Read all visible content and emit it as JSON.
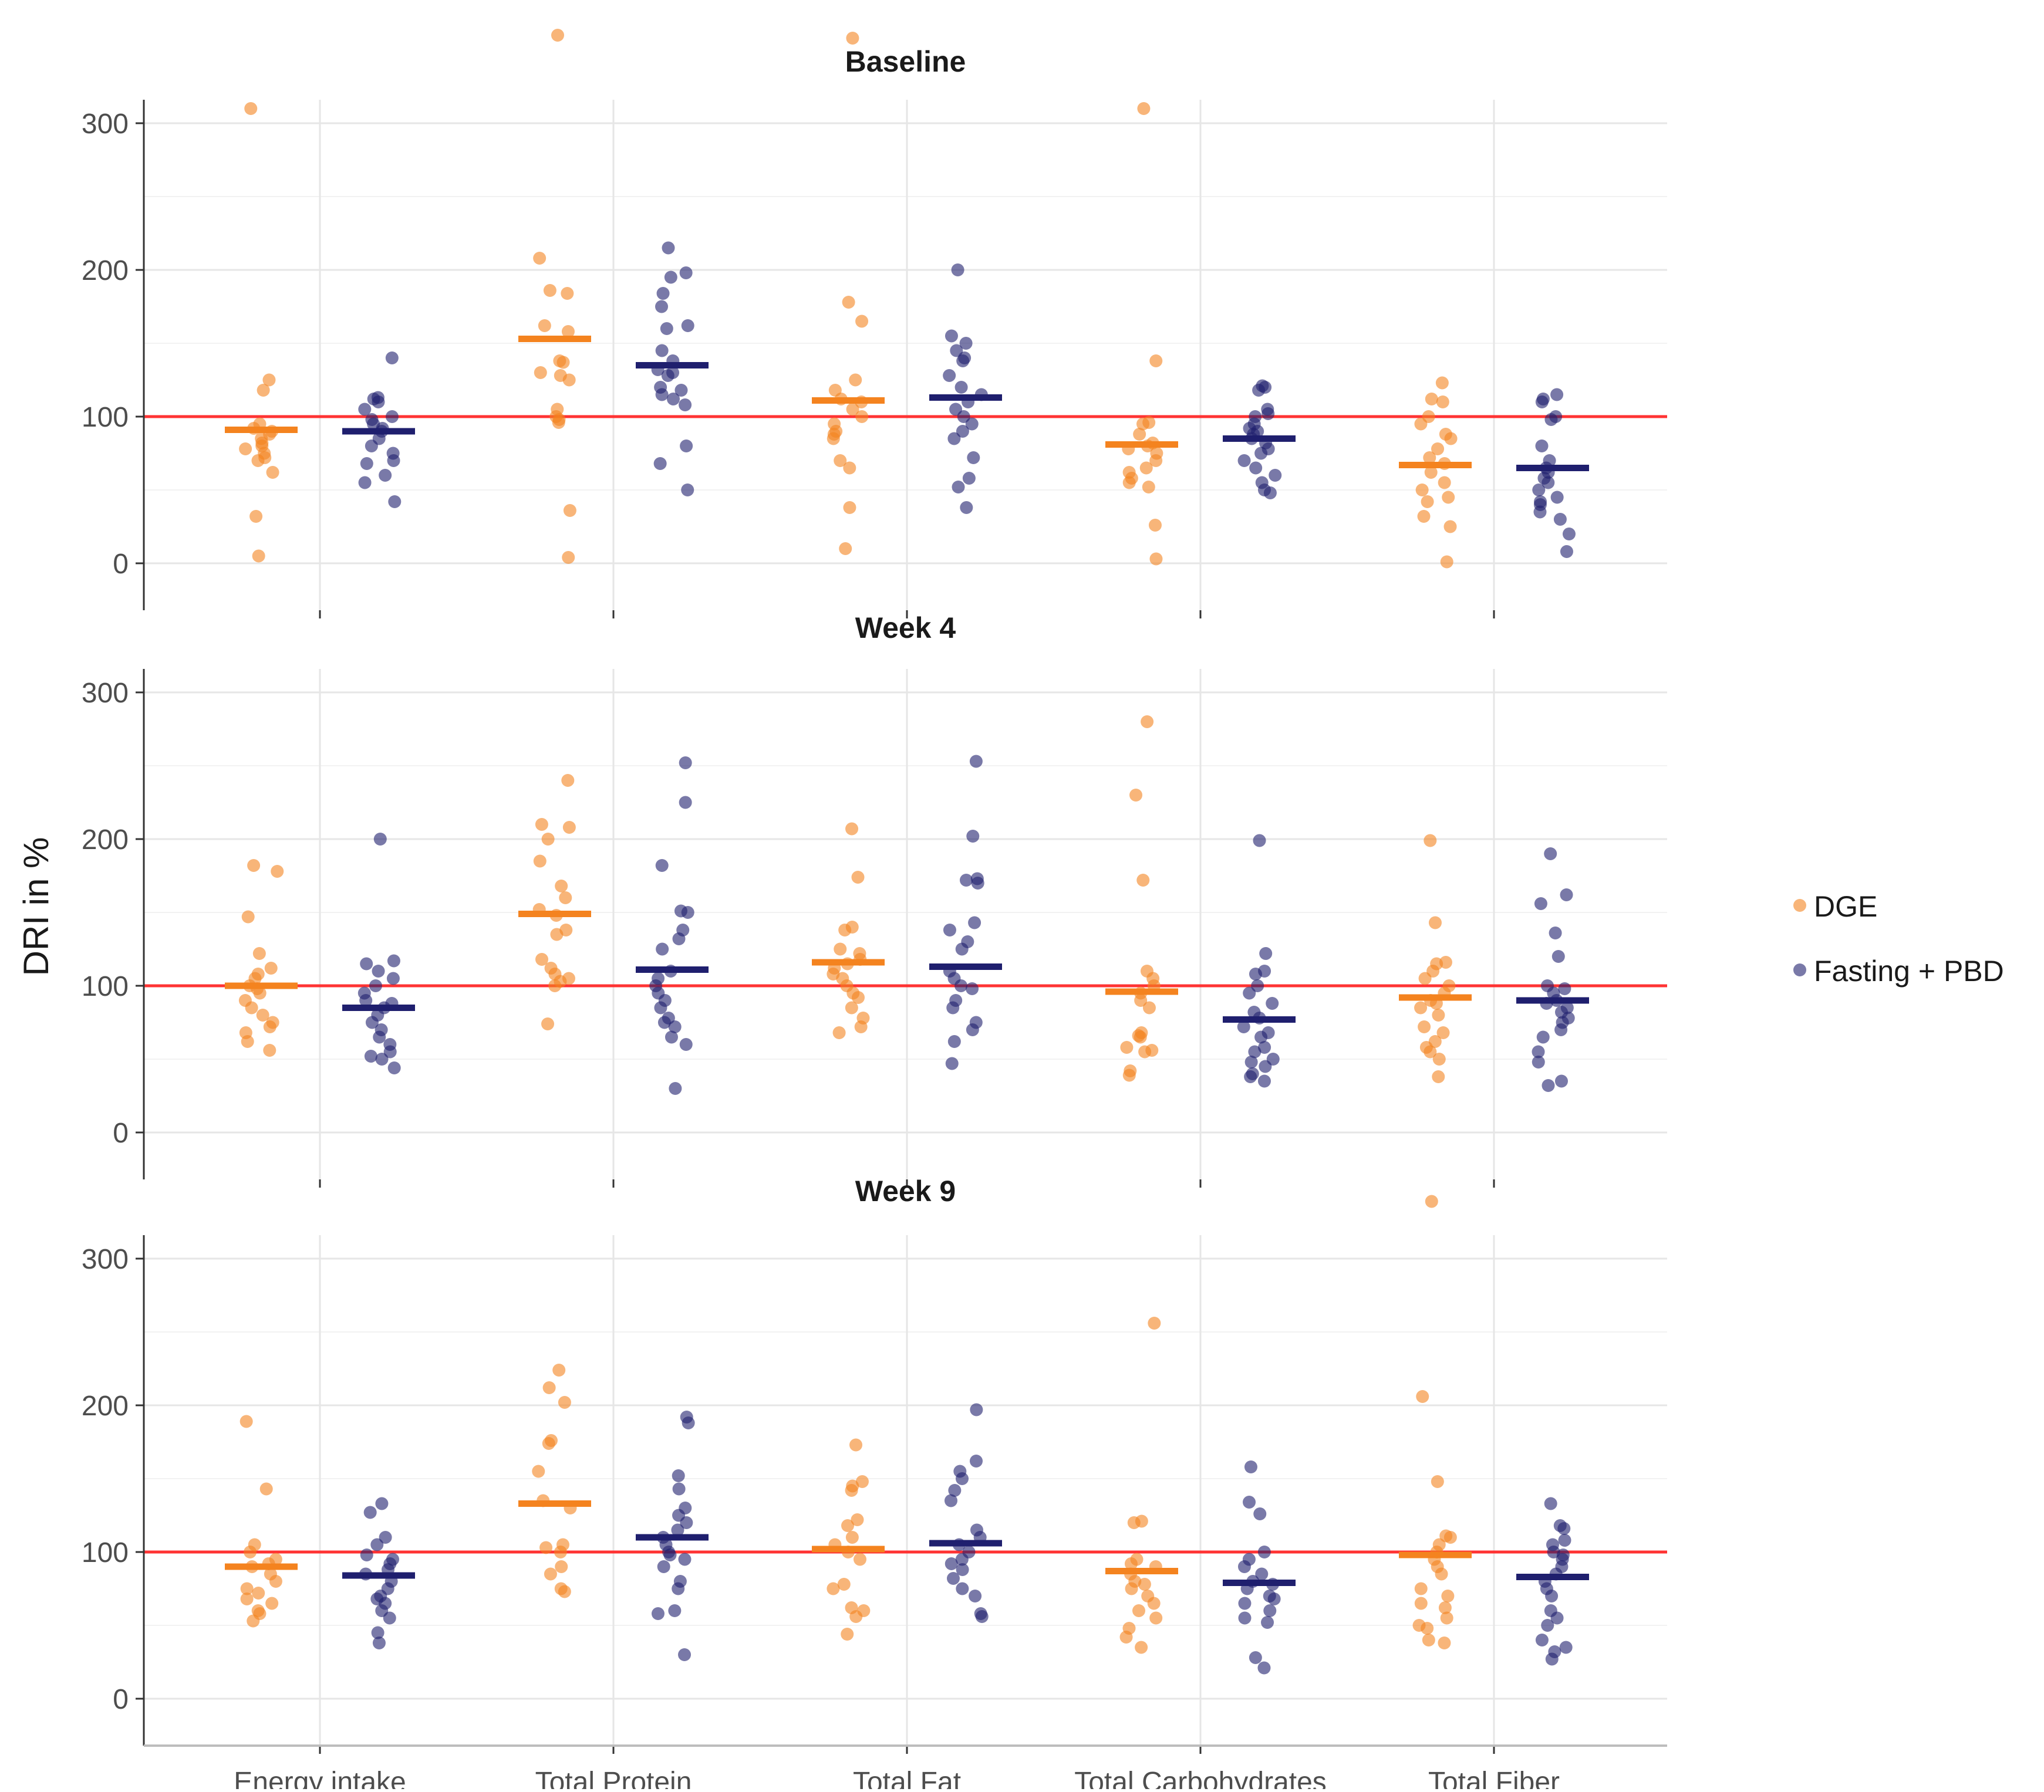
{
  "chart_data": {
    "type": "scatter",
    "ylabel": "DRI in %",
    "xlabel": "",
    "ylim": [
      0,
      300
    ],
    "y_ticks": [
      "0",
      "100",
      "200",
      "300"
    ],
    "reference_line": {
      "y": 100,
      "color": "#ff3333"
    },
    "categories": [
      "Energy intake",
      "Total Protein",
      "Total Fat",
      "Total Carbohydrates",
      "Total Fiber"
    ],
    "legend": {
      "position": "right",
      "entries": [
        {
          "name": "DGE",
          "color": "#f4831f"
        },
        {
          "name": "Fasting + PBD",
          "color": "#1f1f6e"
        }
      ]
    },
    "panels": [
      {
        "title": "Baseline",
        "groups": [
          {
            "category": "Energy intake",
            "series": "DGE",
            "mean": 91,
            "points": [
              310,
              125,
              118,
              95,
              92,
              90,
              88,
              85,
              82,
              80,
              78,
              75,
              72,
              70,
              62,
              32,
              5
            ]
          },
          {
            "category": "Energy intake",
            "series": "Fasting + PBD",
            "mean": 90,
            "points": [
              140,
              113,
              112,
              110,
              105,
              100,
              98,
              95,
              92,
              90,
              85,
              80,
              75,
              70,
              68,
              60,
              55,
              42
            ]
          },
          {
            "category": "Total Protein",
            "series": "DGE",
            "mean": 153,
            "points": [
              360,
              208,
              186,
              184,
              162,
              158,
              138,
              137,
              130,
              128,
              125,
              105,
              100,
              98,
              96,
              36,
              4
            ]
          },
          {
            "category": "Total Protein",
            "series": "Fasting + PBD",
            "mean": 135,
            "points": [
              215,
              198,
              195,
              184,
              175,
              162,
              160,
              145,
              138,
              132,
              130,
              128,
              120,
              118,
              115,
              112,
              108,
              80,
              68,
              50
            ]
          },
          {
            "category": "Total Fat",
            "series": "DGE",
            "mean": 111,
            "points": [
              358,
              178,
              165,
              125,
              118,
              112,
              110,
              105,
              100,
              95,
              90,
              88,
              85,
              70,
              65,
              38,
              10
            ]
          },
          {
            "category": "Total Fat",
            "series": "Fasting + PBD",
            "mean": 113,
            "points": [
              200,
              155,
              150,
              145,
              140,
              138,
              128,
              120,
              115,
              110,
              105,
              100,
              95,
              90,
              85,
              72,
              58,
              52,
              38
            ]
          },
          {
            "category": "Total Carbohydrates",
            "series": "DGE",
            "mean": 81,
            "points": [
              310,
              138,
              96,
              95,
              88,
              82,
              80,
              78,
              75,
              70,
              65,
              62,
              58,
              55,
              52,
              26,
              3
            ]
          },
          {
            "category": "Total Carbohydrates",
            "series": "Fasting + PBD",
            "mean": 85,
            "points": [
              121,
              120,
              118,
              105,
              102,
              100,
              95,
              92,
              90,
              88,
              85,
              82,
              78,
              75,
              70,
              65,
              60,
              55,
              50,
              48
            ]
          },
          {
            "category": "Total Fiber",
            "series": "DGE",
            "mean": 67,
            "points": [
              123,
              112,
              110,
              100,
              95,
              88,
              85,
              78,
              72,
              68,
              62,
              55,
              50,
              45,
              42,
              32,
              25,
              1
            ]
          },
          {
            "category": "Total Fiber",
            "series": "Fasting + PBD",
            "mean": 65,
            "points": [
              115,
              112,
              110,
              100,
              98,
              80,
              70,
              65,
              62,
              58,
              55,
              50,
              45,
              42,
              40,
              35,
              30,
              20,
              8
            ]
          }
        ]
      },
      {
        "title": "Week 4",
        "groups": [
          {
            "category": "Energy intake",
            "series": "DGE",
            "mean": 100,
            "points": [
              182,
              178,
              147,
              122,
              112,
              108,
              105,
              100,
              98,
              95,
              90,
              85,
              80,
              75,
              72,
              68,
              62,
              56
            ]
          },
          {
            "category": "Energy intake",
            "series": "Fasting + PBD",
            "mean": 85,
            "points": [
              200,
              117,
              115,
              110,
              105,
              100,
              95,
              90,
              88,
              85,
              80,
              75,
              70,
              65,
              60,
              55,
              52,
              50,
              44
            ]
          },
          {
            "category": "Total Protein",
            "series": "DGE",
            "mean": 149,
            "points": [
              240,
              210,
              208,
              200,
              185,
              168,
              160,
              152,
              148,
              138,
              135,
              118,
              112,
              108,
              105,
              103,
              100,
              74
            ]
          },
          {
            "category": "Total Protein",
            "series": "Fasting + PBD",
            "mean": 111,
            "points": [
              252,
              225,
              182,
              151,
              150,
              138,
              132,
              125,
              110,
              105,
              100,
              95,
              90,
              85,
              78,
              75,
              72,
              65,
              60,
              30
            ]
          },
          {
            "category": "Total Fat",
            "series": "DGE",
            "mean": 116,
            "points": [
              207,
              174,
              140,
              138,
              125,
              122,
              118,
              115,
              112,
              108,
              105,
              100,
              95,
              92,
              85,
              78,
              72,
              68
            ]
          },
          {
            "category": "Total Fat",
            "series": "Fasting + PBD",
            "mean": 113,
            "points": [
              253,
              202,
              173,
              172,
              170,
              143,
              138,
              130,
              125,
              110,
              105,
              100,
              98,
              90,
              85,
              75,
              70,
              62,
              47
            ]
          },
          {
            "category": "Total Carbohydrates",
            "series": "DGE",
            "mean": 96,
            "points": [
              280,
              230,
              172,
              110,
              105,
              100,
              95,
              90,
              85,
              68,
              66,
              65,
              58,
              56,
              55,
              42,
              39
            ]
          },
          {
            "category": "Total Carbohydrates",
            "series": "Fasting + PBD",
            "mean": 77,
            "points": [
              199,
              122,
              110,
              108,
              100,
              95,
              88,
              82,
              78,
              72,
              68,
              65,
              58,
              55,
              50,
              48,
              45,
              40,
              38,
              35
            ]
          },
          {
            "category": "Total Fiber",
            "series": "DGE",
            "mean": 92,
            "points": [
              199,
              143,
              116,
              115,
              110,
              105,
              100,
              95,
              90,
              88,
              85,
              80,
              72,
              68,
              62,
              58,
              55,
              50,
              38
            ]
          },
          {
            "category": "Total Fiber",
            "series": "Fasting + PBD",
            "mean": 90,
            "points": [
              190,
              162,
              156,
              136,
              120,
              100,
              98,
              95,
              90,
              88,
              85,
              82,
              78,
              75,
              70,
              65,
              55,
              48,
              35,
              32
            ]
          }
        ]
      },
      {
        "title": "Week 9",
        "groups": [
          {
            "category": "Energy intake",
            "series": "DGE",
            "mean": 90,
            "points": [
              189,
              143,
              105,
              100,
              95,
              92,
              90,
              85,
              80,
              75,
              72,
              68,
              65,
              60,
              58,
              53
            ]
          },
          {
            "category": "Energy intake",
            "series": "Fasting + PBD",
            "mean": 84,
            "points": [
              133,
              127,
              110,
              105,
              98,
              95,
              92,
              88,
              85,
              80,
              75,
              70,
              68,
              65,
              60,
              55,
              45,
              38
            ]
          },
          {
            "category": "Total Protein",
            "series": "DGE",
            "mean": 133,
            "points": [
              224,
              212,
              202,
              176,
              174,
              155,
              135,
              130,
              105,
              103,
              100,
              90,
              85,
              75,
              73
            ]
          },
          {
            "category": "Total Protein",
            "series": "Fasting + PBD",
            "mean": 110,
            "points": [
              192,
              188,
              152,
              143,
              130,
              125,
              120,
              115,
              110,
              105,
              100,
              98,
              95,
              90,
              80,
              75,
              60,
              58,
              30
            ]
          },
          {
            "category": "Total Fat",
            "series": "DGE",
            "mean": 102,
            "points": [
              173,
              148,
              145,
              142,
              122,
              118,
              110,
              105,
              100,
              95,
              78,
              75,
              62,
              60,
              56,
              44
            ]
          },
          {
            "category": "Total Fat",
            "series": "Fasting + PBD",
            "mean": 106,
            "points": [
              197,
              162,
              155,
              150,
              142,
              135,
              115,
              110,
              105,
              100,
              95,
              92,
              88,
              82,
              75,
              70,
              58,
              56
            ]
          },
          {
            "category": "Total Carbohydrates",
            "series": "DGE",
            "mean": 87,
            "points": [
              256,
              121,
              120,
              95,
              92,
              90,
              85,
              80,
              78,
              75,
              70,
              65,
              60,
              55,
              48,
              42,
              35
            ]
          },
          {
            "category": "Total Carbohydrates",
            "series": "Fasting + PBD",
            "mean": 79,
            "points": [
              158,
              134,
              126,
              100,
              95,
              90,
              85,
              80,
              78,
              75,
              70,
              68,
              65,
              60,
              55,
              52,
              28,
              21
            ]
          },
          {
            "category": "Total Fiber",
            "series": "DGE",
            "mean": 98,
            "points": [
              339,
              206,
              148,
              111,
              110,
              105,
              100,
              95,
              90,
              85,
              75,
              70,
              65,
              62,
              55,
              50,
              48,
              40,
              38
            ]
          },
          {
            "category": "Total Fiber",
            "series": "Fasting + PBD",
            "mean": 83,
            "points": [
              133,
              118,
              116,
              108,
              105,
              100,
              98,
              95,
              90,
              85,
              80,
              75,
              70,
              60,
              55,
              50,
              40,
              35,
              32,
              27
            ]
          }
        ]
      }
    ]
  }
}
